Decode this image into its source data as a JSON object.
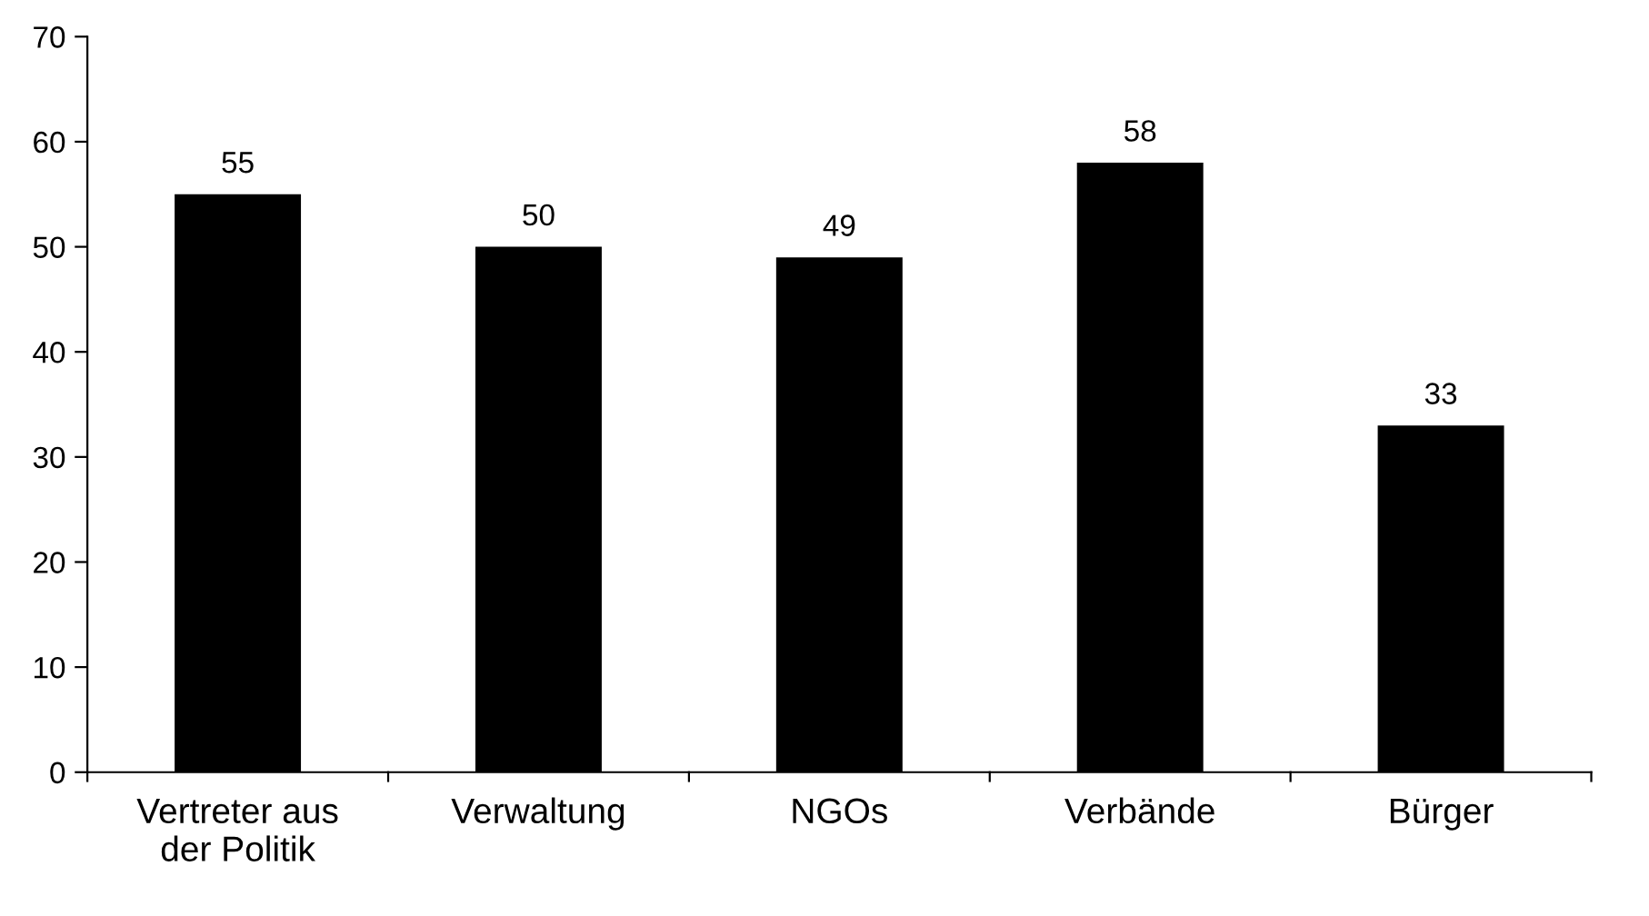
{
  "chart_data": {
    "type": "bar",
    "categories": [
      "Vertreter aus\nder Politik",
      "Verwaltung",
      "NGOs",
      "Verbände",
      "Bürger"
    ],
    "values": [
      55,
      50,
      49,
      58,
      33
    ],
    "color": "#000000",
    "ylim": [
      0,
      70
    ],
    "yticks": [
      0,
      10,
      20,
      30,
      40,
      50,
      60,
      70
    ],
    "data_labels": true,
    "grid": false,
    "legend": false
  }
}
